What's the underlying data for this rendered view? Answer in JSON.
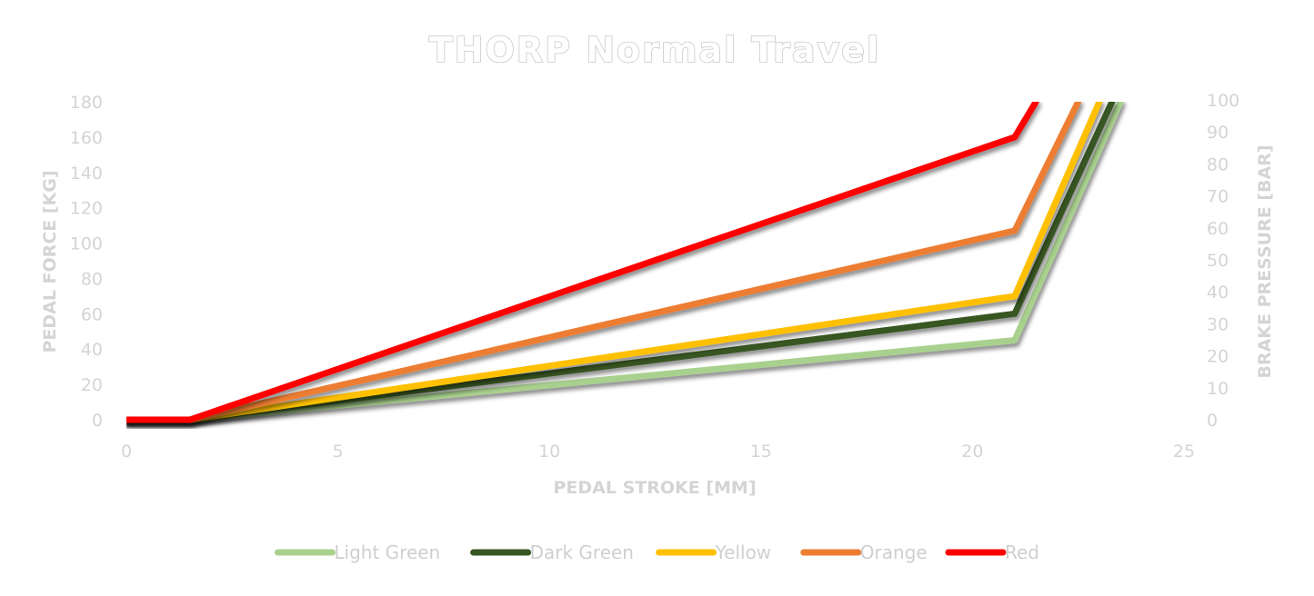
{
  "chart_data": {
    "type": "line",
    "title": "THORP Normal Travel",
    "xlabel": "PEDAL STROKE [MM]",
    "ylabel": "PEDAL FORCE [KG]",
    "y2label": "BRAKE PRESSURE [BAR]",
    "xlim": [
      0,
      25
    ],
    "ylim": [
      0,
      180
    ],
    "y2lim": [
      0,
      100
    ],
    "xticks": [
      "0",
      "5",
      "10",
      "15",
      "20",
      "25"
    ],
    "yticks": [
      "0",
      "20",
      "40",
      "60",
      "80",
      "100",
      "120",
      "140",
      "160",
      "180"
    ],
    "y2ticks": [
      "0",
      "10",
      "20",
      "30",
      "40",
      "50",
      "60",
      "70",
      "80",
      "90",
      "100"
    ],
    "grid": false,
    "legend": "bottom",
    "series": [
      {
        "name": "Light Green",
        "color": "#a9d18e",
        "points": [
          [
            0,
            0
          ],
          [
            1.5,
            0
          ],
          [
            21,
            45
          ],
          [
            23.5,
            180
          ]
        ]
      },
      {
        "name": "Dark Green",
        "color": "#375623",
        "points": [
          [
            0,
            0
          ],
          [
            1.5,
            0
          ],
          [
            21,
            60
          ],
          [
            23.3,
            180
          ]
        ]
      },
      {
        "name": "Yellow",
        "color": "#ffc000",
        "points": [
          [
            0,
            0
          ],
          [
            1.5,
            0
          ],
          [
            21,
            70
          ],
          [
            23.0,
            180
          ]
        ]
      },
      {
        "name": "Orange",
        "color": "#ed7d31",
        "points": [
          [
            0,
            0
          ],
          [
            1.5,
            0
          ],
          [
            21,
            107
          ],
          [
            22.5,
            180
          ]
        ]
      },
      {
        "name": "Red",
        "color": "#ff0000",
        "points": [
          [
            0,
            0
          ],
          [
            1.5,
            0
          ],
          [
            21,
            160
          ],
          [
            21.5,
            180
          ]
        ]
      }
    ]
  }
}
